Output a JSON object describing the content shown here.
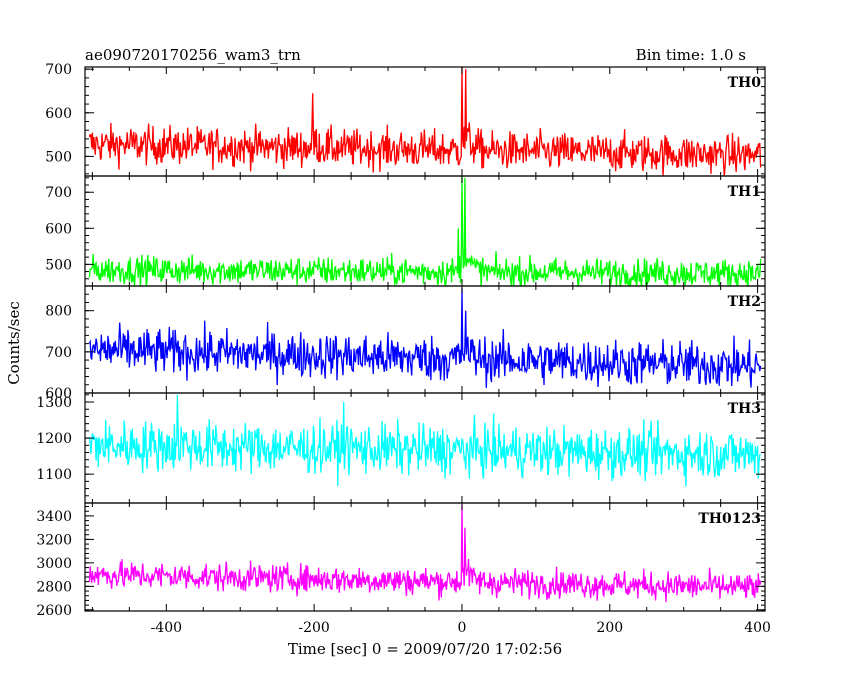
{
  "header": {
    "title": "ae090720170256_wam3_trn",
    "bin_time": "Bin time: 1.0 s"
  },
  "chart_data": {
    "type": "line",
    "title": "ae090720170256_wam3_trn",
    "xlabel": "Time [sec] 0 = 2009/07/20 17:02:56",
    "ylabel": "Counts/sec",
    "xlim": [
      -510,
      410
    ],
    "x_ticks": [
      -400,
      -200,
      0,
      200,
      400
    ],
    "grid": false,
    "x_range_data": [
      -504,
      404
    ],
    "panels": [
      {
        "name": "TH0",
        "color": "#ff0000",
        "ylim": [
          455,
          705
        ],
        "y_ticks": [
          500,
          600,
          700
        ],
        "baseline_start": 528,
        "baseline_end": 503,
        "noise": 22,
        "peaks": [
          {
            "x": -202,
            "y": 645
          },
          {
            "x": 0,
            "y": 705
          },
          {
            "x": 5,
            "y": 700
          }
        ]
      },
      {
        "name": "TH1",
        "color": "#00ff00",
        "ylim": [
          440,
          745
        ],
        "y_ticks": [
          500,
          600,
          700
        ],
        "baseline_start": 485,
        "baseline_end": 475,
        "noise": 20,
        "peaks": [
          {
            "x": -5,
            "y": 600
          },
          {
            "x": 0,
            "y": 745
          },
          {
            "x": 4,
            "y": 740
          }
        ]
      },
      {
        "name": "TH2",
        "color": "#0000ff",
        "ylim": [
          600,
          860
        ],
        "y_ticks": [
          600,
          700,
          800
        ],
        "baseline_start": 705,
        "baseline_end": 665,
        "noise": 28,
        "peaks": [
          {
            "x": -5,
            "y": 720
          },
          {
            "x": 0,
            "y": 855
          },
          {
            "x": 5,
            "y": 800
          }
        ]
      },
      {
        "name": "TH3",
        "color": "#00ffff",
        "ylim": [
          1020,
          1325
        ],
        "y_ticks": [
          1100,
          1200,
          1300
        ],
        "baseline_start": 1180,
        "baseline_end": 1155,
        "noise": 35,
        "peaks": [
          {
            "x": -385,
            "y": 1320
          },
          {
            "x": -160,
            "y": 1300
          }
        ]
      },
      {
        "name": "TH0123",
        "color": "#ff00ff",
        "ylim": [
          2590,
          3510
        ],
        "y_ticks": [
          2600,
          2800,
          3000,
          3200,
          3400
        ],
        "baseline_start": 2900,
        "baseline_end": 2790,
        "noise": 60,
        "peaks": [
          {
            "x": 0,
            "y": 3500
          },
          {
            "x": 4,
            "y": 3300
          }
        ]
      }
    ]
  }
}
